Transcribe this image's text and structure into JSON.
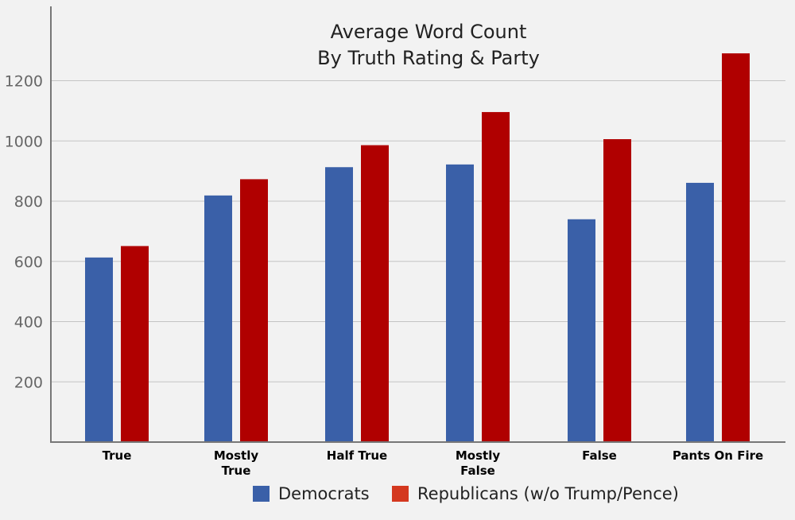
{
  "chart_data": {
    "type": "bar",
    "title": [
      "Average Word Count",
      "By Truth Rating & Party"
    ],
    "xlabel": "",
    "ylabel": "",
    "categories": [
      [
        "True"
      ],
      [
        "Mostly",
        "True"
      ],
      [
        "Half True"
      ],
      [
        "Mostly",
        "False"
      ],
      [
        "False"
      ],
      [
        "Pants On Fire"
      ]
    ],
    "series": [
      {
        "name": "Democrats",
        "color": "#3a60a8",
        "values": [
          613,
          819,
          913,
          922,
          740,
          861
        ]
      },
      {
        "name": "Republicans (w/o Trump/Pence)",
        "color": "#b00000",
        "values": [
          651,
          873,
          986,
          1096,
          1006,
          1291
        ]
      }
    ],
    "legend_colors": [
      "#3a60a8",
      "#d4381f"
    ],
    "yticks": [
      200,
      400,
      600,
      800,
      1000,
      1200
    ],
    "ylim": [
      0,
      1400
    ],
    "grid": true,
    "legend_position": "bottom"
  }
}
